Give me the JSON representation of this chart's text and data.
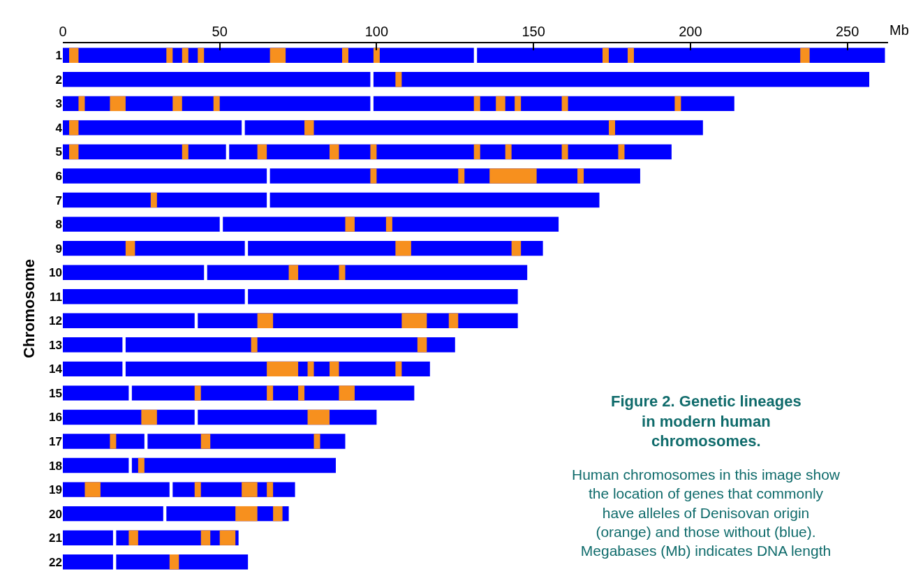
{
  "chart_data": {
    "type": "bar",
    "orientation": "horizontal",
    "title": "Figure 2. Genetic lineages in modern human chromosomes.",
    "subtitle": "Human chromosomes in this image show the location of genes that commonly have alleles of Denisovan origin (orange) and those without (blue). Megabases (Mb) indicates DNA length",
    "xlabel": "Mb",
    "ylabel": "Chromosome",
    "categories": [
      "1",
      "2",
      "3",
      "4",
      "5",
      "6",
      "7",
      "8",
      "9",
      "10",
      "11",
      "12",
      "13",
      "14",
      "15",
      "16",
      "17",
      "18",
      "19",
      "20",
      "21",
      "22"
    ],
    "xlim": [
      0,
      263
    ],
    "xticks": [
      0,
      50,
      100,
      150,
      200,
      250
    ],
    "grid": false,
    "series": [
      {
        "color": "#0000ff",
        "base": [
          0,
          0,
          0,
          0,
          0,
          0,
          0,
          0,
          0,
          0,
          0,
          0,
          0,
          0,
          0,
          0,
          0,
          0,
          0,
          0,
          0,
          0
        ],
        "values": [
          131,
          98,
          98,
          57,
          52,
          65,
          65,
          50,
          58,
          45,
          58,
          42,
          19,
          19,
          21,
          42,
          26,
          21,
          34,
          32,
          16,
          16
        ]
      },
      {
        "color": "#0000ff",
        "base": [
          132,
          99,
          99,
          58,
          53,
          66,
          66,
          51,
          59,
          46,
          59,
          43,
          20,
          20,
          22,
          43,
          27,
          22,
          35,
          33,
          17,
          17
        ],
        "values": [
          130,
          158,
          115,
          146,
          141,
          118,
          105,
          107,
          94,
          102,
          86,
          102,
          105,
          97,
          90,
          57,
          63,
          65,
          39,
          39,
          39,
          42
        ]
      },
      {
        "color": "#f7901e",
        "base": [
          2,
          106,
          5,
          2,
          2,
          98,
          28,
          90,
          20,
          72,
          null,
          62,
          60,
          65,
          42,
          25,
          15,
          24,
          7,
          55,
          21,
          34
        ],
        "values": [
          3,
          2,
          2,
          3,
          3,
          2,
          2,
          3,
          3,
          3,
          null,
          5,
          2,
          10,
          2,
          5,
          2,
          2,
          5,
          7,
          3,
          3
        ]
      },
      {
        "color": "#f7901e",
        "base": [
          33,
          null,
          15,
          77,
          38,
          126,
          null,
          103,
          106,
          88,
          null,
          108,
          113,
          78,
          65,
          78,
          44,
          null,
          42,
          67,
          44,
          null
        ],
        "values": [
          2,
          null,
          5,
          3,
          2,
          2,
          null,
          2,
          5,
          2,
          null,
          8,
          3,
          2,
          2,
          7,
          3,
          null,
          2,
          3,
          3,
          null
        ]
      },
      {
        "color": "#f7901e",
        "base": [
          38,
          null,
          35,
          174,
          62,
          136,
          null,
          null,
          143,
          null,
          null,
          123,
          null,
          85,
          75,
          null,
          80,
          null,
          57,
          null,
          50,
          null
        ],
        "values": [
          2,
          null,
          3,
          2,
          3,
          15,
          null,
          null,
          3,
          null,
          null,
          3,
          null,
          3,
          2,
          null,
          2,
          null,
          5,
          null,
          5,
          null
        ]
      },
      {
        "color": "#f7901e",
        "base": [
          43,
          null,
          48,
          null,
          85,
          164,
          null,
          null,
          null,
          null,
          null,
          null,
          null,
          106,
          88,
          null,
          null,
          null,
          65,
          null,
          null,
          null
        ],
        "values": [
          2,
          null,
          2,
          null,
          3,
          2,
          null,
          null,
          null,
          null,
          null,
          null,
          null,
          2,
          5,
          null,
          null,
          null,
          2,
          null,
          null,
          null
        ]
      },
      {
        "color": "#f7901e",
        "base": [
          66,
          null,
          131,
          null,
          98,
          null,
          null,
          null,
          null,
          null,
          null,
          null,
          null,
          null,
          null,
          null,
          null,
          null,
          null,
          null,
          null,
          null
        ],
        "values": [
          5,
          null,
          2,
          null,
          2,
          null,
          null,
          null,
          null,
          null,
          null,
          null,
          null,
          null,
          null,
          null,
          null,
          null,
          null,
          null,
          null,
          null
        ]
      },
      {
        "color": "#f7901e",
        "base": [
          89,
          null,
          138,
          null,
          131,
          null,
          null,
          null,
          null,
          null,
          null,
          null,
          null,
          null,
          null,
          null,
          null,
          null,
          null,
          null,
          null,
          null
        ],
        "values": [
          2,
          null,
          3,
          null,
          2,
          null,
          null,
          null,
          null,
          null,
          null,
          null,
          null,
          null,
          null,
          null,
          null,
          null,
          null,
          null,
          null,
          null
        ]
      },
      {
        "color": "#f7901e",
        "base": [
          99,
          null,
          144,
          null,
          141,
          null,
          null,
          null,
          null,
          null,
          null,
          null,
          null,
          null,
          null,
          null,
          null,
          null,
          null,
          null,
          null,
          null
        ],
        "values": [
          2,
          null,
          2,
          null,
          2,
          null,
          null,
          null,
          null,
          null,
          null,
          null,
          null,
          null,
          null,
          null,
          null,
          null,
          null,
          null,
          null,
          null
        ]
      },
      {
        "color": "#f7901e",
        "base": [
          172,
          null,
          159,
          null,
          159,
          null,
          null,
          null,
          null,
          null,
          null,
          null,
          null,
          null,
          null,
          null,
          null,
          null,
          null,
          null,
          null,
          null
        ],
        "values": [
          2,
          null,
          2,
          null,
          2,
          null,
          null,
          null,
          null,
          null,
          null,
          null,
          null,
          null,
          null,
          null,
          null,
          null,
          null,
          null,
          null,
          null
        ]
      },
      {
        "color": "#f7901e",
        "base": [
          180,
          null,
          195,
          null,
          177,
          null,
          null,
          null,
          null,
          null,
          null,
          null,
          null,
          null,
          null,
          null,
          null,
          null,
          null,
          null,
          null,
          null
        ],
        "values": [
          2,
          null,
          2,
          null,
          2,
          null,
          null,
          null,
          null,
          null,
          null,
          null,
          null,
          null,
          null,
          null,
          null,
          null,
          null,
          null,
          null,
          null
        ]
      },
      {
        "color": "#f7901e",
        "base": [
          235,
          null,
          null,
          null,
          null,
          null,
          null,
          null,
          null,
          null,
          null,
          null,
          null,
          null,
          null,
          null,
          null,
          null,
          null,
          null,
          null,
          null
        ],
        "values": [
          3,
          null,
          null,
          null,
          null,
          null,
          null,
          null,
          null,
          null,
          null,
          null,
          null,
          null,
          null,
          null,
          null,
          null,
          null,
          null,
          null,
          null
        ]
      }
    ]
  }
}
